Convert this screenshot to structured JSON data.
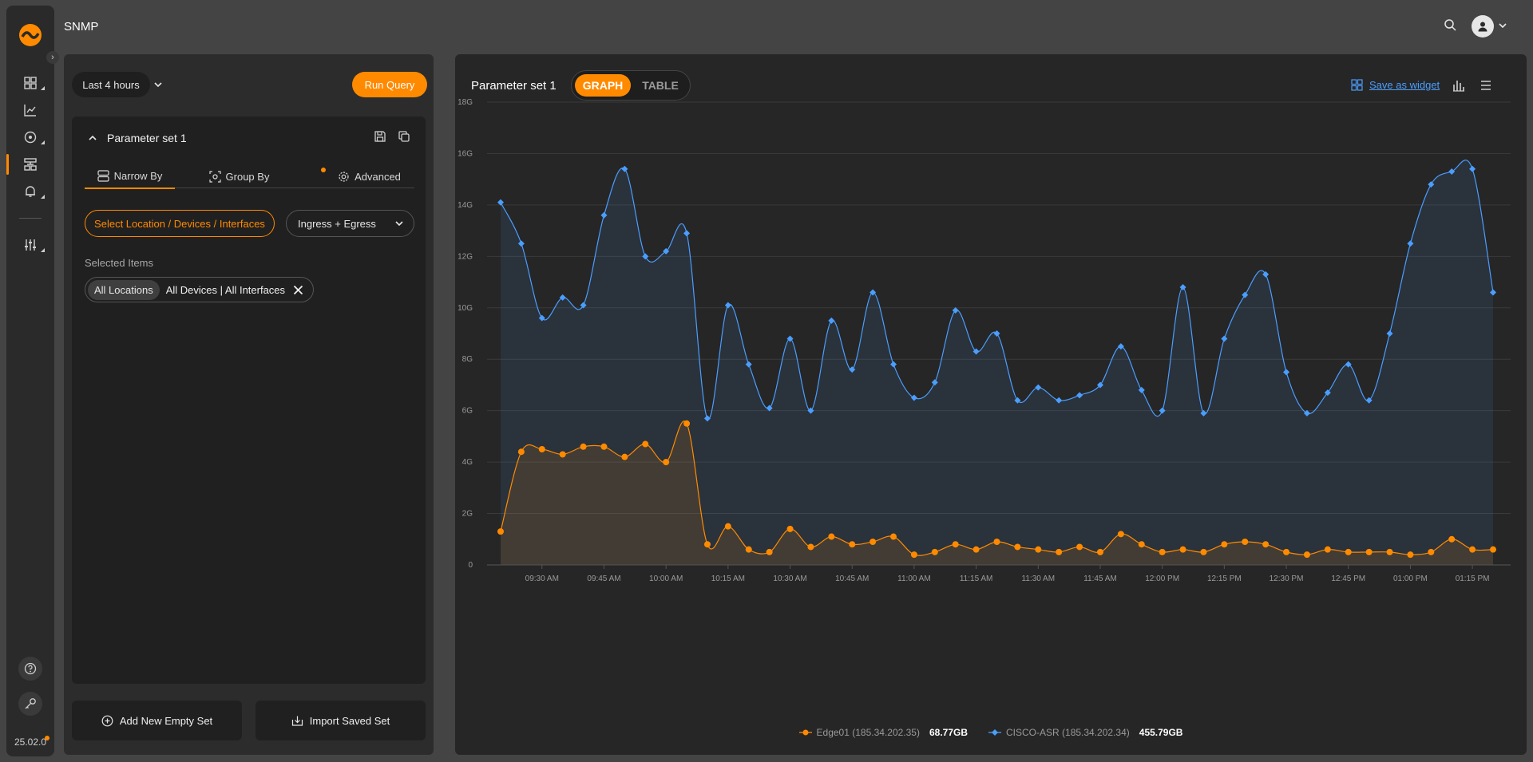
{
  "app": {
    "title": "SNMP",
    "version": "25.02.0"
  },
  "header": {
    "search_icon": "search-icon",
    "user_icon": "user-icon"
  },
  "query": {
    "time_range": "Last 4 hours",
    "run_label": "Run Query"
  },
  "parameter_set": {
    "title": "Parameter set 1",
    "tabs": [
      {
        "label": "Narrow By",
        "icon": "stack-icon",
        "active": true
      },
      {
        "label": "Group By",
        "icon": "group-icon",
        "active": false
      },
      {
        "label": "Advanced",
        "icon": "gear-icon",
        "active": false
      }
    ],
    "select_location_label": "Select Location / Devices / Interfaces",
    "direction": "Ingress + Egress",
    "selected_items_label": "Selected Items",
    "chip": {
      "location": "All Locations",
      "devices": "All Devices | All Interfaces"
    }
  },
  "footer": {
    "add_label": "Add New Empty Set",
    "import_label": "Import Saved Set"
  },
  "panel": {
    "title": "Parameter set 1",
    "graph_label": "GRAPH",
    "table_label": "TABLE",
    "save_widget_label": "Save as widget"
  },
  "colors": {
    "accent": "#ff8a00",
    "series_blue": "#4a9eff",
    "series_orange": "#ff8a00"
  },
  "chart_data": {
    "type": "area",
    "y_ticks": [
      "0",
      "2G",
      "4G",
      "6G",
      "8G",
      "10G",
      "12G",
      "14G",
      "16G",
      "18G"
    ],
    "ylim": [
      0,
      18
    ],
    "x_ticks": [
      "09:30 AM",
      "09:45 AM",
      "10:00 AM",
      "10:15 AM",
      "10:30 AM",
      "10:45 AM",
      "11:00 AM",
      "11:15 AM",
      "11:30 AM",
      "11:45 AM",
      "12:00 PM",
      "12:15 PM",
      "12:30 PM",
      "12:45 PM",
      "01:00 PM",
      "01:15 PM"
    ],
    "series": [
      {
        "name": "CISCO-ASR (185.34.202.34)",
        "total": "455.79GB",
        "color": "#4a9eff",
        "values": [
          14.1,
          12.5,
          9.6,
          10.4,
          10.1,
          13.6,
          15.4,
          12.0,
          12.2,
          12.9,
          5.7,
          10.1,
          7.8,
          6.1,
          8.8,
          6.0,
          9.5,
          7.6,
          10.6,
          7.8,
          6.5,
          7.1,
          9.9,
          8.3,
          9.0,
          6.4,
          6.9,
          6.4,
          6.6,
          7.0,
          8.5,
          6.8,
          6.0,
          10.8,
          5.9,
          8.8,
          10.5,
          11.3,
          7.5,
          5.9,
          6.7,
          7.8,
          6.4,
          9.0,
          12.5,
          14.8,
          15.3,
          15.4,
          10.6
        ]
      },
      {
        "name": "Edge01 (185.34.202.35)",
        "total": "68.77GB",
        "color": "#ff8a00",
        "values": [
          1.3,
          4.4,
          4.5,
          4.3,
          4.6,
          4.6,
          4.2,
          4.7,
          4.0,
          5.5,
          0.8,
          1.5,
          0.6,
          0.5,
          1.4,
          0.7,
          1.1,
          0.8,
          0.9,
          1.1,
          0.4,
          0.5,
          0.8,
          0.6,
          0.9,
          0.7,
          0.6,
          0.5,
          0.7,
          0.5,
          1.2,
          0.8,
          0.5,
          0.6,
          0.5,
          0.8,
          0.9,
          0.8,
          0.5,
          0.4,
          0.6,
          0.5,
          0.5,
          0.5,
          0.4,
          0.5,
          1.0,
          0.6,
          0.6
        ]
      }
    ],
    "legend": "bottom-center",
    "grid": true
  }
}
